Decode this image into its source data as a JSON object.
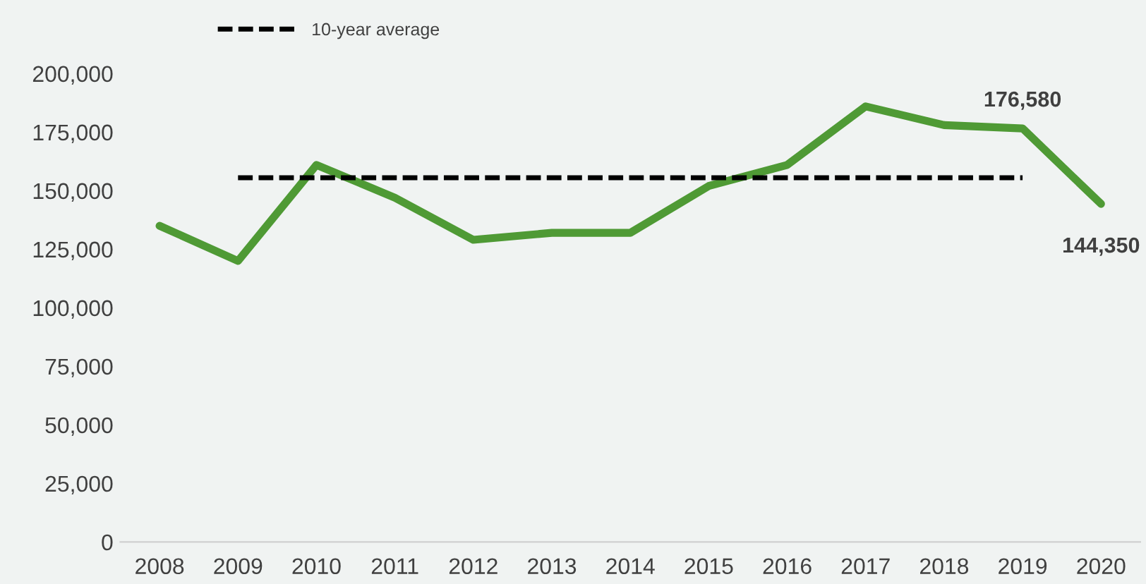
{
  "chart_data": {
    "type": "line",
    "categories": [
      "2008",
      "2009",
      "2010",
      "2011",
      "2012",
      "2013",
      "2014",
      "2015",
      "2016",
      "2017",
      "2018",
      "2019",
      "2020"
    ],
    "series": [
      {
        "color": "#4f9a35",
        "values": [
          135000,
          120000,
          161000,
          147000,
          129000,
          132000,
          132000,
          152000,
          161000,
          186000,
          178000,
          176580,
          144350
        ],
        "value_labels": [
          null,
          null,
          null,
          null,
          null,
          null,
          null,
          null,
          null,
          null,
          null,
          "176,580",
          "144,350"
        ]
      },
      {
        "name": "10-year average",
        "color": "#000000",
        "line_style": "dashed",
        "values": [
          null,
          155500,
          155500,
          155500,
          155500,
          155500,
          155500,
          155500,
          155500,
          155500,
          155500,
          155500,
          null
        ]
      }
    ],
    "ylim": [
      0,
      200000
    ],
    "yticks": [
      {
        "value": 0,
        "label": "0"
      },
      {
        "value": 25000,
        "label": "25,000"
      },
      {
        "value": 50000,
        "label": "50,000"
      },
      {
        "value": 75000,
        "label": "75,000"
      },
      {
        "value": 100000,
        "label": "100,000"
      },
      {
        "value": 125000,
        "label": "125,000"
      },
      {
        "value": 150000,
        "label": "150,000"
      },
      {
        "value": 175000,
        "label": "175,000"
      },
      {
        "value": 200000,
        "label": "200,000"
      }
    ],
    "grid": false,
    "legend": "top left"
  }
}
